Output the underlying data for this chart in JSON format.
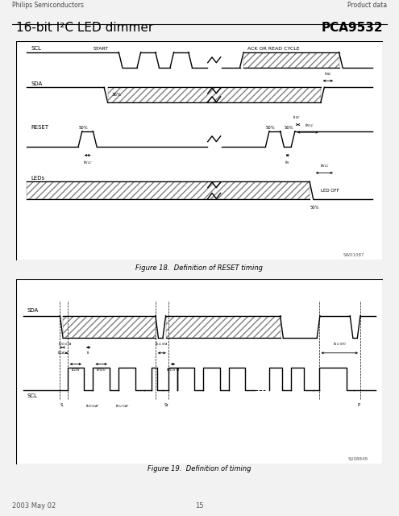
{
  "title_left": "Philips Semiconductors",
  "title_right": "Product data",
  "heading_left": "16-bit I²C LED dimmer",
  "heading_right": "PCA9532",
  "fig1_caption": "Figure 18.  Definition of RESET timing",
  "fig2_caption": "Figure 19.  Definition of timing",
  "footer_left": "2003 May 02",
  "footer_center": "15",
  "sw_label1": "SW01087",
  "sw_label2": "SU08849",
  "page_bg": "#f2f2f2",
  "box_bg": "#ffffff"
}
